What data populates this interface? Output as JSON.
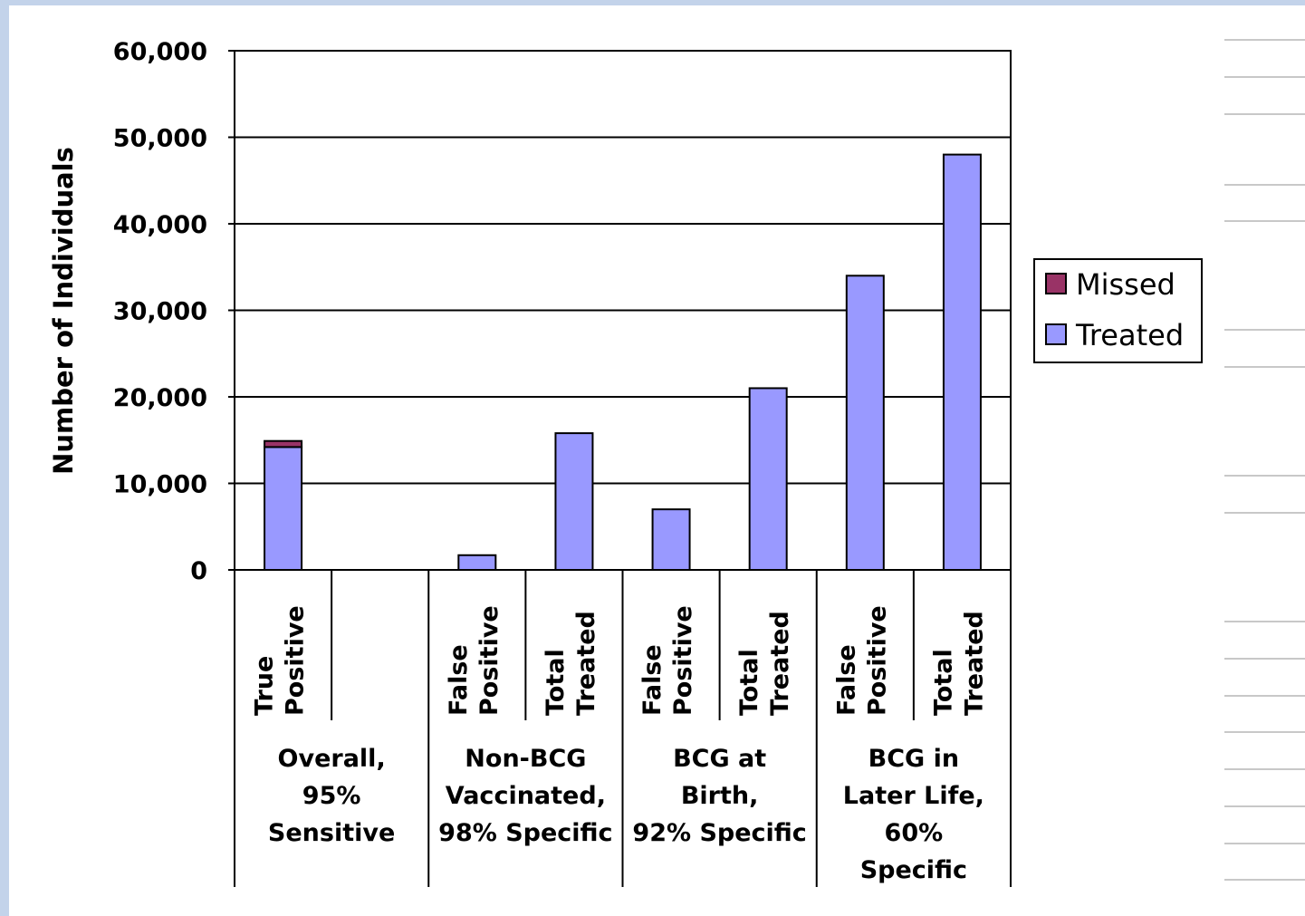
{
  "chart_data": {
    "type": "bar",
    "stacked": true,
    "ylabel": "Number of Individuals",
    "ylim": [
      0,
      60000
    ],
    "yticks": [
      0,
      10000,
      20000,
      30000,
      40000,
      50000,
      60000
    ],
    "ytick_labels": [
      "0",
      "10,000",
      "20,000",
      "30,000",
      "40,000",
      "50,000",
      "60,000"
    ],
    "grid": true,
    "legend_position": "right",
    "categories": [
      {
        "group": "Overall, 95% Sensitive",
        "label": "True Positive"
      },
      {
        "group": "Overall, 95% Sensitive",
        "label": ""
      },
      {
        "group": "Non-BCG Vaccinated, 98% Specific",
        "label": "False Positive"
      },
      {
        "group": "Non-BCG Vaccinated, 98% Specific",
        "label": "Total Treated"
      },
      {
        "group": "BCG at Birth, 92% Specific",
        "label": "False Positive"
      },
      {
        "group": "BCG at Birth, 92% Specific",
        "label": "Total Treated"
      },
      {
        "group": "BCG in Later Life, 60% Specific",
        "label": "False Positive"
      },
      {
        "group": "BCG in Later Life, 60% Specific",
        "label": "Total Treated"
      }
    ],
    "groups": [
      {
        "lines": [
          "Overall,",
          "95%",
          "Sensitive"
        ]
      },
      {
        "lines": [
          "Non-BCG",
          "Vaccinated,",
          "98% Specific"
        ]
      },
      {
        "lines": [
          "BCG at",
          "Birth,",
          "92% Specific"
        ]
      },
      {
        "lines": [
          "BCG in",
          "Later Life,",
          "60%",
          "Specific"
        ]
      }
    ],
    "tick_labels": [
      [
        "True",
        "Positive"
      ],
      [],
      [
        "False",
        "Positive"
      ],
      [
        "Total",
        "Treated"
      ],
      [
        "False",
        "Positive"
      ],
      [
        "Total",
        "Treated"
      ],
      [
        "False",
        "Positive"
      ],
      [
        "Total",
        "Treated"
      ]
    ],
    "series": [
      {
        "name": "Treated",
        "color": "#9999ff",
        "values": [
          14200,
          null,
          1700,
          15800,
          7000,
          21000,
          34000,
          48000
        ]
      },
      {
        "name": "Missed",
        "color": "#993366",
        "values": [
          700,
          null,
          0,
          0,
          0,
          0,
          0,
          0
        ]
      }
    ],
    "legend": [
      {
        "name": "Missed",
        "color": "#993366"
      },
      {
        "name": "Treated",
        "color": "#9999ff"
      }
    ]
  }
}
